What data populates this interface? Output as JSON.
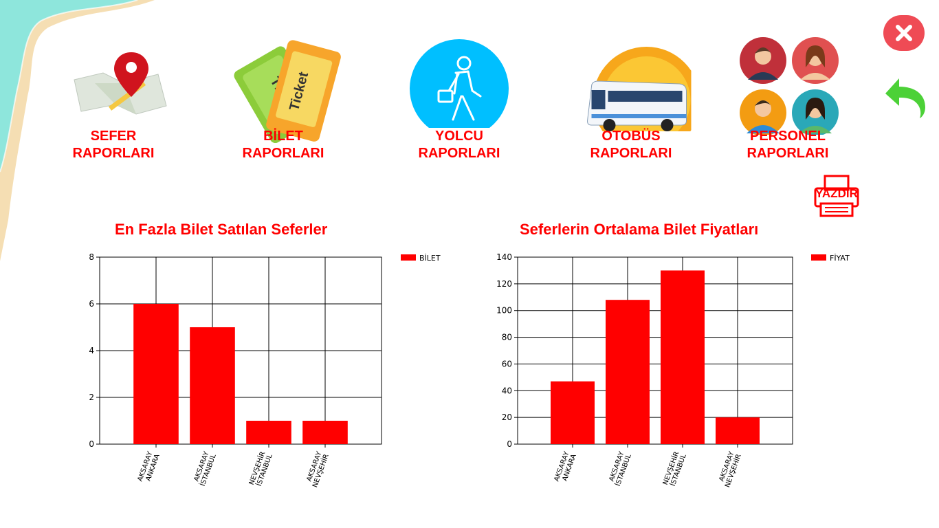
{
  "nav": [
    {
      "key": "sefer",
      "label": "SEFER\nRAPORLARI",
      "icon": "map-pin-icon"
    },
    {
      "key": "bilet",
      "label": "BİLET\nRAPORLARI",
      "icon": "ticket-icon"
    },
    {
      "key": "yolcu",
      "label": "YOLCU\nRAPORLARI",
      "icon": "walking-passenger-icon"
    },
    {
      "key": "otobus",
      "label": "OTOBÜS\nRAPORLARI",
      "icon": "bus-icon"
    },
    {
      "key": "personel",
      "label": "PERSONEL\nRAPORLARI",
      "icon": "staff-avatars-icon"
    }
  ],
  "ticket_icon_text": "Ticket",
  "print_label": "YAZDIR",
  "colors": {
    "accent": "#ff0000",
    "close_button": "#ef4b55",
    "back_arrow": "#4cd137",
    "yolcu_circle": "#00bfff"
  },
  "chart_data": [
    {
      "type": "bar",
      "title": "En Fazla Bilet Satılan Seferler",
      "categories": [
        "AKSARAY\nANKARA",
        "AKSARAY\nİSTANBUL",
        "NEVŞEHİR\nİSTANBUL",
        "AKSARAY\nNEVŞEHİR"
      ],
      "series": [
        {
          "name": "BİLET",
          "values": [
            6,
            5,
            1,
            1
          ],
          "color": "#ff0000"
        }
      ],
      "ylim": [
        0,
        8
      ],
      "yticks": [
        0,
        2,
        4,
        6,
        8
      ],
      "grid": true,
      "legend": "top-right",
      "xlabel": "",
      "ylabel": ""
    },
    {
      "type": "bar",
      "title": "Seferlerin Ortalama Bilet Fiyatları",
      "categories": [
        "AKSARAY\nANKARA",
        "AKSARAY\nİSTANBUL",
        "NEVŞEHİR\nİSTANBUL",
        "AKSARAY\nNEVŞEHİR"
      ],
      "series": [
        {
          "name": "FİYAT",
          "values": [
            47,
            108,
            130,
            20
          ],
          "color": "#ff0000"
        }
      ],
      "ylim": [
        0,
        140
      ],
      "yticks": [
        0,
        20,
        40,
        60,
        80,
        100,
        120,
        140
      ],
      "grid": true,
      "legend": "top-right",
      "xlabel": "",
      "ylabel": ""
    }
  ]
}
